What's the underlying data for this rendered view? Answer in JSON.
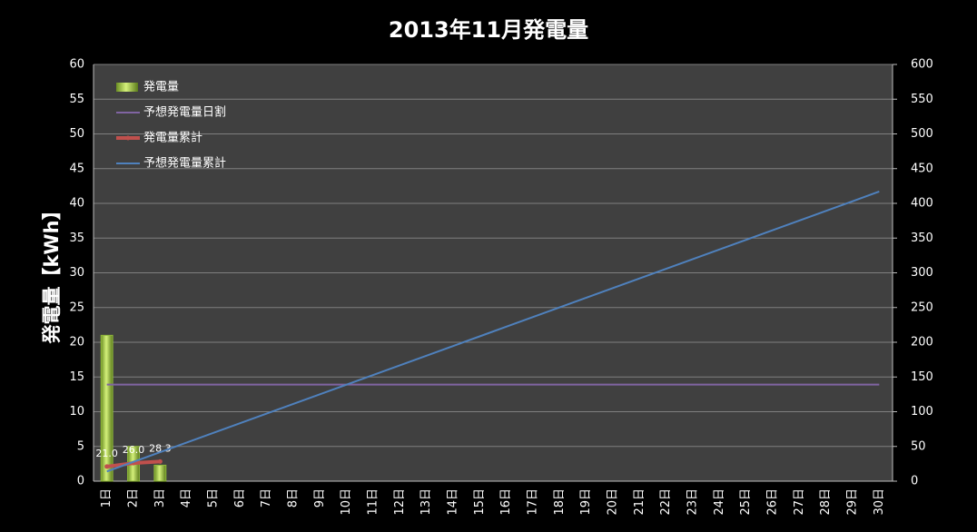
{
  "chart_data": {
    "type": "bar",
    "title": "2013年11月発電量",
    "y_label": "発電量【kWh】",
    "categories": [
      "1日",
      "2日",
      "3日",
      "4日",
      "5日",
      "6日",
      "7日",
      "8日",
      "9日",
      "10日",
      "11日",
      "12日",
      "13日",
      "14日",
      "15日",
      "16日",
      "17日",
      "18日",
      "19日",
      "20日",
      "21日",
      "22日",
      "23日",
      "24日",
      "25日",
      "26日",
      "27日",
      "28日",
      "29日",
      "30日"
    ],
    "series": [
      {
        "name": "発電量",
        "type": "bar",
        "color": "#9acd32",
        "values": [
          21,
          5,
          2.3,
          null,
          null,
          null,
          null,
          null,
          null,
          null,
          null,
          null,
          null,
          null,
          null,
          null,
          null,
          null,
          null,
          null,
          null,
          null,
          null,
          null,
          null,
          null,
          null,
          null,
          null,
          null
        ]
      },
      {
        "name": "予想発電量日割",
        "type": "line",
        "color": "#8064a2",
        "values": [
          13.9,
          13.9,
          13.9,
          13.9,
          13.9,
          13.9,
          13.9,
          13.9,
          13.9,
          13.9,
          13.9,
          13.9,
          13.9,
          13.9,
          13.9,
          13.9,
          13.9,
          13.9,
          13.9,
          13.9,
          13.9,
          13.9,
          13.9,
          13.9,
          13.9,
          13.9,
          13.9,
          13.9,
          13.9,
          13.9
        ]
      },
      {
        "name": "発電量累計",
        "type": "line",
        "axis": "y2",
        "color": "#c0504d",
        "marker": true,
        "values": [
          21,
          26,
          28.3,
          null,
          null,
          null,
          null,
          null,
          null,
          null,
          null,
          null,
          null,
          null,
          null,
          null,
          null,
          null,
          null,
          null,
          null,
          null,
          null,
          null,
          null,
          null,
          null,
          null,
          null,
          null
        ],
        "value_labels": [
          "21.0",
          "26.0",
          "28.3",
          null,
          null,
          null,
          null,
          null,
          null,
          null,
          null,
          null,
          null,
          null,
          null,
          null,
          null,
          null,
          null,
          null,
          null,
          null,
          null,
          null,
          null,
          null,
          null,
          null,
          null,
          null
        ]
      },
      {
        "name": "予想発電量累計",
        "type": "line",
        "axis": "y2",
        "color": "#4f81bd",
        "values": [
          13.9,
          27.8,
          41.7,
          55.6,
          69.5,
          83.4,
          97.3,
          111.2,
          125.1,
          139,
          152.9,
          166.8,
          180.7,
          194.6,
          208.5,
          222.4,
          236.3,
          250.2,
          264.1,
          278,
          291.9,
          305.8,
          319.7,
          333.6,
          347.5,
          361.4,
          375.3,
          389.2,
          403.1,
          417
        ]
      }
    ],
    "ylim": [
      0,
      60
    ],
    "yticks": [
      0,
      5,
      10,
      15,
      20,
      25,
      30,
      35,
      40,
      45,
      50,
      55,
      60
    ],
    "y2lim": [
      0,
      600
    ],
    "y2ticks": [
      0,
      50,
      100,
      150,
      200,
      250,
      300,
      350,
      400,
      450,
      500,
      550,
      600
    ],
    "grid": true,
    "legend": "top-left"
  }
}
